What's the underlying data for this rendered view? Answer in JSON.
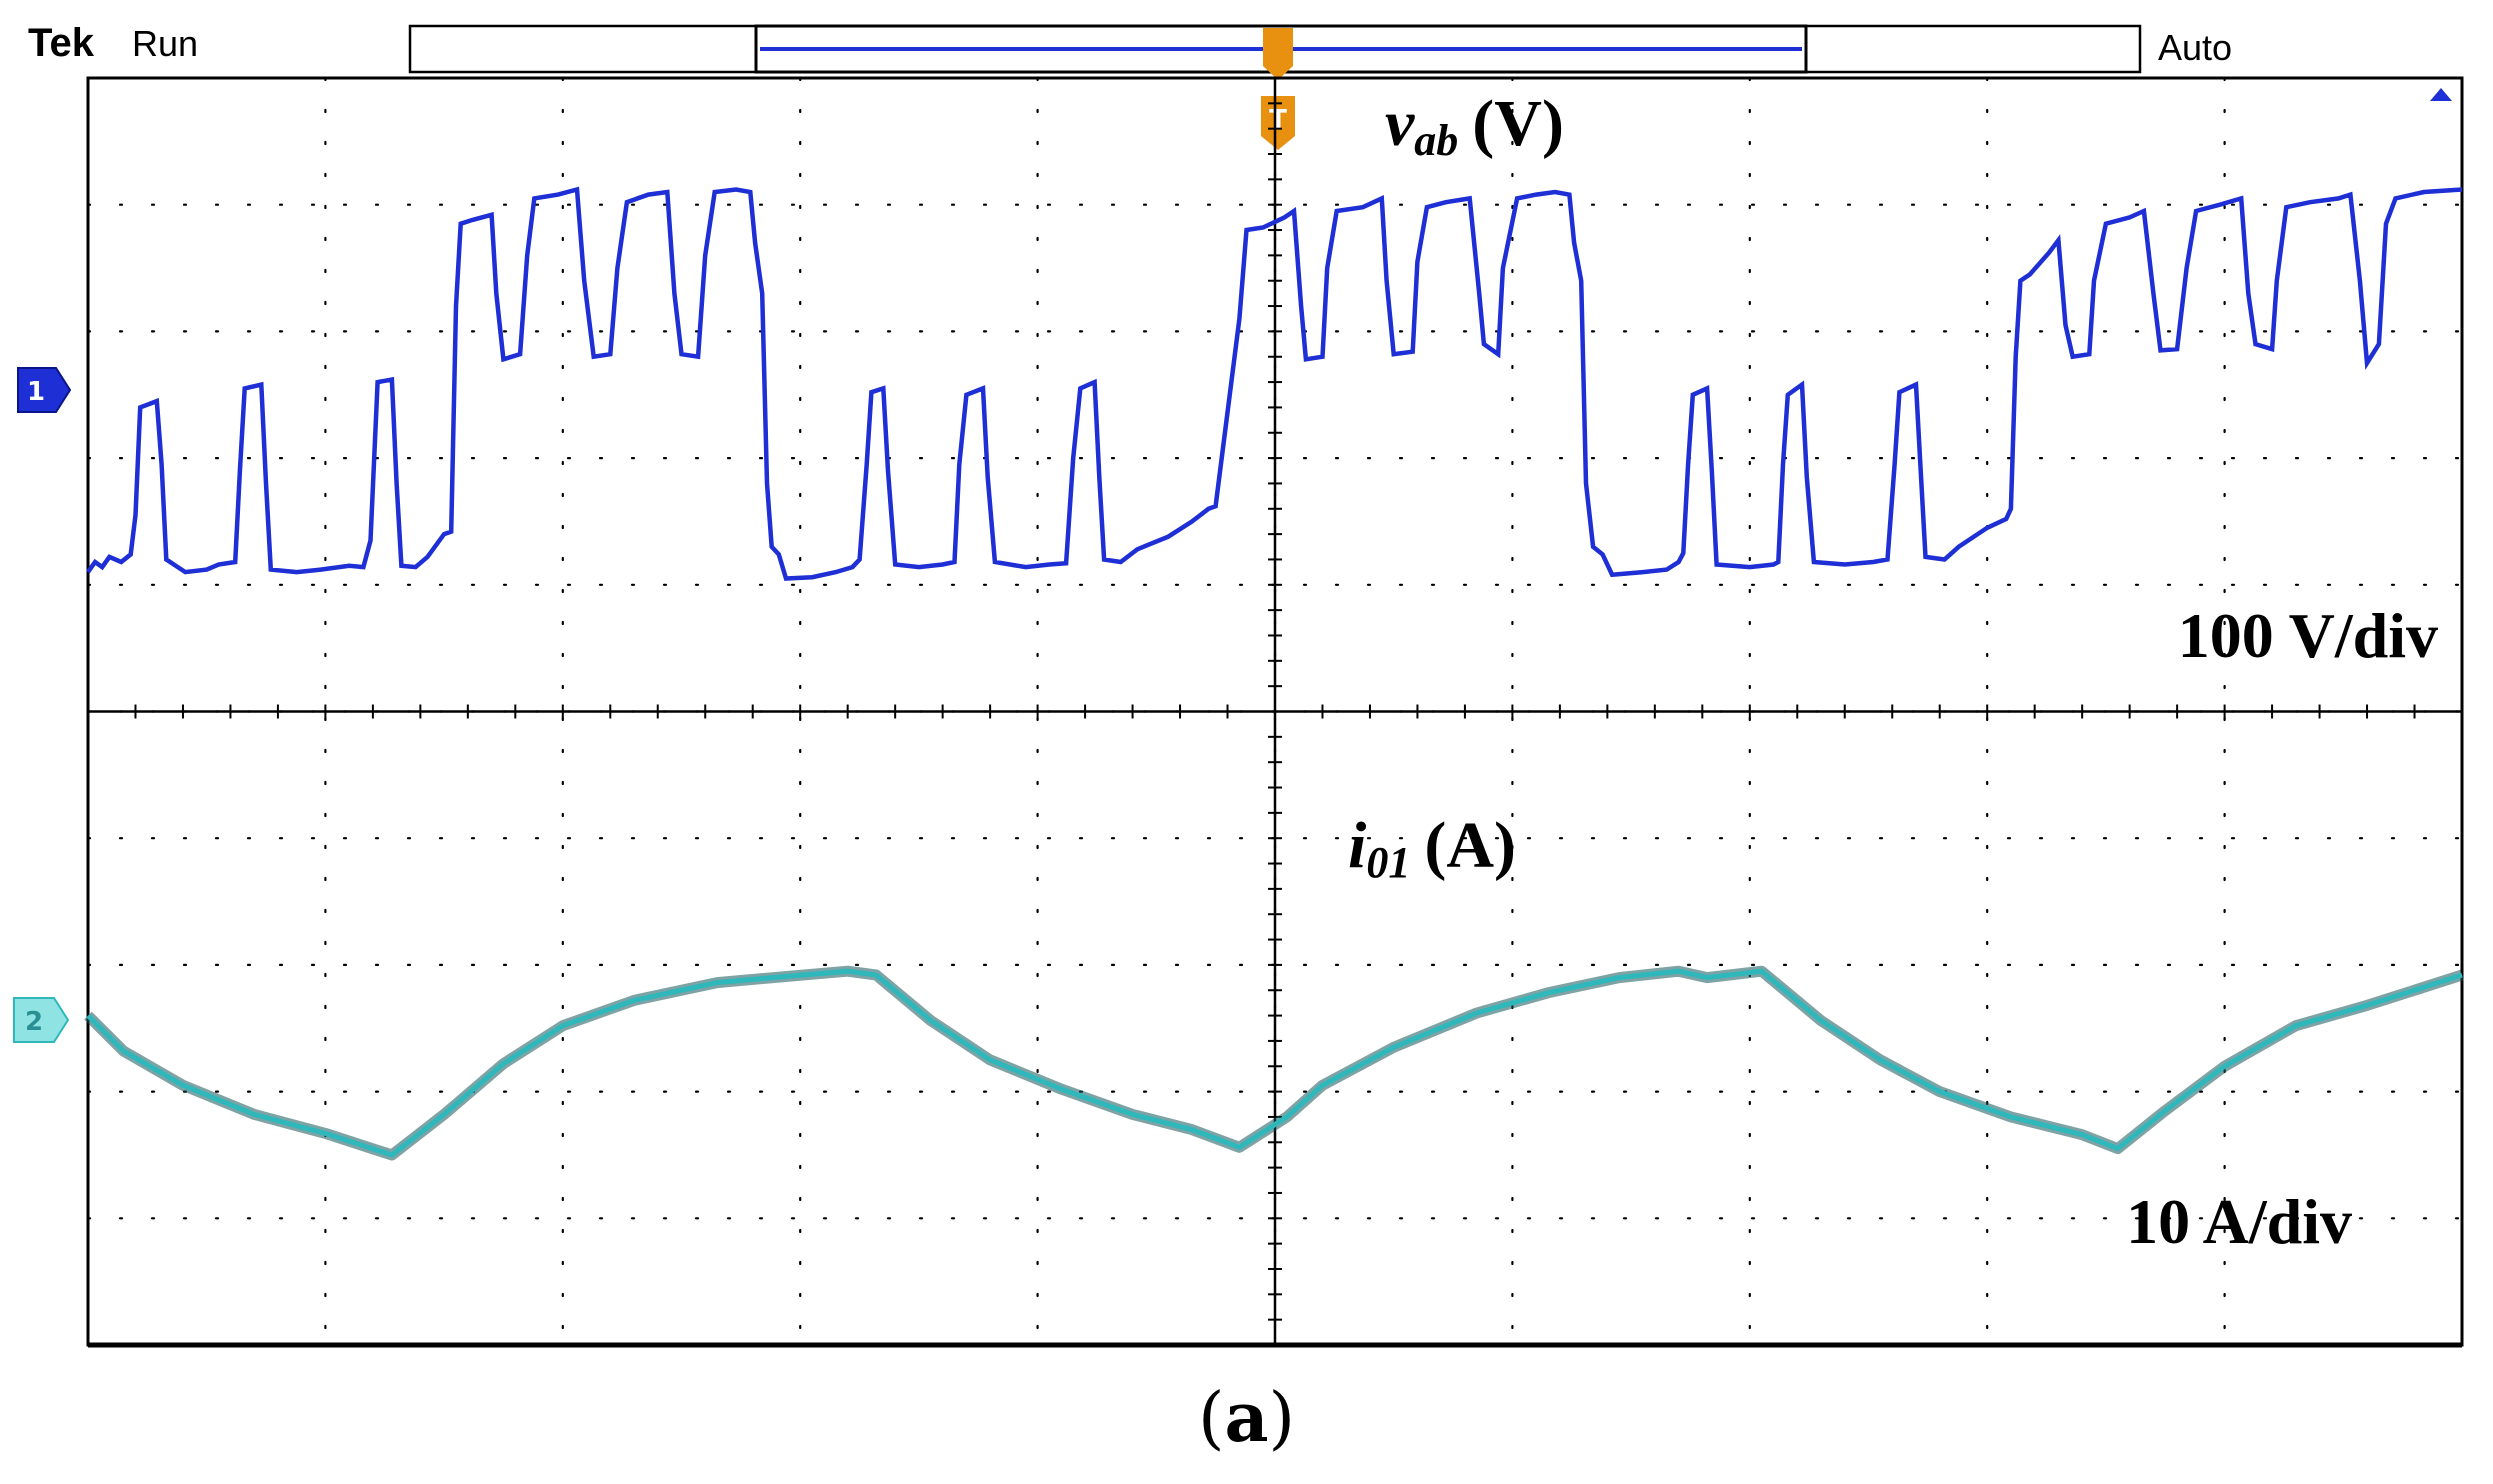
{
  "header": {
    "brand": "Tek",
    "run_state": "Run",
    "trigger_mode": "Auto",
    "trigger_marker": "T"
  },
  "caption": {
    "open": "(",
    "letter": "a",
    "close": ")"
  },
  "colors": {
    "ch1": "#1e2fd6",
    "ch2": "#2fb8bb",
    "ch2_dark": "#16565a",
    "trigger": "#e8900f",
    "grid": "#000000"
  },
  "chart_data": {
    "type": "line",
    "title": "",
    "grid": {
      "horizontal_divisions": 10,
      "vertical_divisions": 10,
      "dotted": true
    },
    "x_unit": "div",
    "channels": [
      {
        "id": 1,
        "marker": "1",
        "signal": "v",
        "subscript": "ab",
        "unit": "(V)",
        "scale": "100 V/div",
        "ylim": [
          0,
          5
        ],
        "points": [
          [
            0.0,
            1.1
          ],
          [
            0.03,
            1.18
          ],
          [
            0.06,
            1.14
          ],
          [
            0.09,
            1.22
          ],
          [
            0.14,
            1.18
          ],
          [
            0.18,
            1.24
          ],
          [
            0.2,
            1.55
          ],
          [
            0.22,
            2.4
          ],
          [
            0.29,
            2.45
          ],
          [
            0.31,
            1.95
          ],
          [
            0.33,
            1.2
          ],
          [
            0.41,
            1.1
          ],
          [
            0.5,
            1.12
          ],
          [
            0.55,
            1.16
          ],
          [
            0.62,
            1.18
          ],
          [
            0.64,
            1.9
          ],
          [
            0.66,
            2.55
          ],
          [
            0.73,
            2.58
          ],
          [
            0.75,
            1.8
          ],
          [
            0.77,
            1.12
          ],
          [
            0.88,
            1.1
          ],
          [
            0.98,
            1.12
          ],
          [
            1.1,
            1.15
          ],
          [
            1.16,
            1.14
          ],
          [
            1.19,
            1.35
          ],
          [
            1.22,
            2.6
          ],
          [
            1.28,
            2.62
          ],
          [
            1.3,
            1.8
          ],
          [
            1.32,
            1.15
          ],
          [
            1.38,
            1.14
          ],
          [
            1.43,
            1.22
          ],
          [
            1.5,
            1.4
          ],
          [
            1.53,
            1.42
          ],
          [
            1.55,
            3.2
          ],
          [
            1.57,
            3.85
          ],
          [
            1.62,
            3.88
          ],
          [
            1.7,
            3.92
          ],
          [
            1.72,
            3.3
          ],
          [
            1.75,
            2.78
          ],
          [
            1.82,
            2.82
          ],
          [
            1.85,
            3.6
          ],
          [
            1.88,
            4.05
          ],
          [
            1.98,
            4.08
          ],
          [
            2.06,
            4.12
          ],
          [
            2.09,
            3.4
          ],
          [
            2.13,
            2.8
          ],
          [
            2.2,
            2.82
          ],
          [
            2.23,
            3.5
          ],
          [
            2.27,
            4.02
          ],
          [
            2.36,
            4.08
          ],
          [
            2.44,
            4.1
          ],
          [
            2.47,
            3.3
          ],
          [
            2.5,
            2.82
          ],
          [
            2.57,
            2.8
          ],
          [
            2.6,
            3.6
          ],
          [
            2.64,
            4.1
          ],
          [
            2.73,
            4.12
          ],
          [
            2.79,
            4.1
          ],
          [
            2.81,
            3.7
          ],
          [
            2.84,
            3.3
          ],
          [
            2.86,
            1.8
          ],
          [
            2.88,
            1.3
          ],
          [
            2.91,
            1.24
          ],
          [
            2.94,
            1.05
          ],
          [
            3.05,
            1.06
          ],
          [
            3.15,
            1.1
          ],
          [
            3.22,
            1.14
          ],
          [
            3.25,
            1.2
          ],
          [
            3.28,
            1.95
          ],
          [
            3.3,
            2.52
          ],
          [
            3.35,
            2.55
          ],
          [
            3.37,
            1.9
          ],
          [
            3.4,
            1.16
          ],
          [
            3.5,
            1.14
          ],
          [
            3.6,
            1.16
          ],
          [
            3.65,
            1.18
          ],
          [
            3.67,
            1.95
          ],
          [
            3.7,
            2.5
          ],
          [
            3.77,
            2.55
          ],
          [
            3.79,
            1.85
          ],
          [
            3.82,
            1.18
          ],
          [
            3.95,
            1.14
          ],
          [
            4.05,
            1.16
          ],
          [
            4.12,
            1.17
          ],
          [
            4.15,
            2.0
          ],
          [
            4.18,
            2.55
          ],
          [
            4.24,
            2.6
          ],
          [
            4.26,
            1.85
          ],
          [
            4.28,
            1.2
          ],
          [
            4.35,
            1.18
          ],
          [
            4.42,
            1.28
          ],
          [
            4.55,
            1.38
          ],
          [
            4.65,
            1.5
          ],
          [
            4.72,
            1.6
          ],
          [
            4.75,
            1.62
          ],
          [
            4.85,
            3.1
          ],
          [
            4.88,
            3.8
          ],
          [
            4.95,
            3.82
          ],
          [
            5.04,
            3.9
          ],
          [
            5.08,
            3.95
          ],
          [
            5.11,
            3.2
          ],
          [
            5.13,
            2.78
          ],
          [
            5.2,
            2.8
          ],
          [
            5.22,
            3.5
          ],
          [
            5.26,
            3.95
          ],
          [
            5.37,
            3.98
          ],
          [
            5.45,
            4.05
          ],
          [
            5.47,
            3.4
          ],
          [
            5.5,
            2.82
          ],
          [
            5.58,
            2.84
          ],
          [
            5.6,
            3.55
          ],
          [
            5.64,
            3.98
          ],
          [
            5.72,
            4.02
          ],
          [
            5.82,
            4.05
          ],
          [
            5.86,
            3.3
          ],
          [
            5.88,
            2.9
          ],
          [
            5.94,
            2.82
          ],
          [
            5.96,
            3.5
          ],
          [
            6.02,
            4.05
          ],
          [
            6.1,
            4.08
          ],
          [
            6.18,
            4.1
          ],
          [
            6.24,
            4.08
          ],
          [
            6.26,
            3.7
          ],
          [
            6.29,
            3.4
          ],
          [
            6.31,
            1.8
          ],
          [
            6.34,
            1.3
          ],
          [
            6.38,
            1.24
          ],
          [
            6.42,
            1.08
          ],
          [
            6.55,
            1.1
          ],
          [
            6.65,
            1.12
          ],
          [
            6.7,
            1.18
          ],
          [
            6.72,
            1.25
          ],
          [
            6.74,
            1.95
          ],
          [
            6.76,
            2.5
          ],
          [
            6.82,
            2.55
          ],
          [
            6.84,
            1.9
          ],
          [
            6.86,
            1.16
          ],
          [
            7.0,
            1.14
          ],
          [
            7.1,
            1.16
          ],
          [
            7.12,
            1.18
          ],
          [
            7.14,
            1.95
          ],
          [
            7.16,
            2.5
          ],
          [
            7.22,
            2.58
          ],
          [
            7.24,
            1.85
          ],
          [
            7.27,
            1.18
          ],
          [
            7.4,
            1.16
          ],
          [
            7.52,
            1.18
          ],
          [
            7.58,
            1.2
          ],
          [
            7.61,
            1.95
          ],
          [
            7.63,
            2.52
          ],
          [
            7.7,
            2.58
          ],
          [
            7.72,
            1.9
          ],
          [
            7.74,
            1.22
          ],
          [
            7.82,
            1.2
          ],
          [
            7.88,
            1.3
          ],
          [
            8.0,
            1.45
          ],
          [
            8.08,
            1.52
          ],
          [
            8.1,
            1.6
          ],
          [
            8.12,
            2.8
          ],
          [
            8.14,
            3.4
          ],
          [
            8.18,
            3.45
          ],
          [
            8.26,
            3.62
          ],
          [
            8.3,
            3.72
          ],
          [
            8.33,
            3.05
          ],
          [
            8.36,
            2.8
          ],
          [
            8.43,
            2.82
          ],
          [
            8.45,
            3.4
          ],
          [
            8.5,
            3.85
          ],
          [
            8.6,
            3.9
          ],
          [
            8.66,
            3.95
          ],
          [
            8.7,
            3.3
          ],
          [
            8.73,
            2.85
          ],
          [
            8.8,
            2.86
          ],
          [
            8.84,
            3.5
          ],
          [
            8.88,
            3.95
          ],
          [
            8.98,
            4.0
          ],
          [
            9.07,
            4.05
          ],
          [
            9.1,
            3.3
          ],
          [
            9.13,
            2.9
          ],
          [
            9.2,
            2.86
          ],
          [
            9.22,
            3.4
          ],
          [
            9.26,
            3.98
          ],
          [
            9.36,
            4.02
          ],
          [
            9.48,
            4.05
          ],
          [
            9.53,
            4.08
          ],
          [
            9.57,
            3.4
          ],
          [
            9.6,
            2.75
          ],
          [
            9.65,
            2.9
          ],
          [
            9.68,
            3.85
          ],
          [
            9.72,
            4.05
          ],
          [
            9.84,
            4.1
          ],
          [
            10.0,
            4.12
          ]
        ]
      },
      {
        "id": 2,
        "marker": "2",
        "signal": "i",
        "subscript": "01",
        "unit": "(A)",
        "scale": "10 A/div",
        "ylim": [
          0,
          5
        ],
        "points": [
          [
            0.0,
            2.6
          ],
          [
            0.15,
            2.32
          ],
          [
            0.4,
            2.05
          ],
          [
            0.7,
            1.82
          ],
          [
            1.0,
            1.67
          ],
          [
            1.28,
            1.5
          ],
          [
            1.5,
            1.82
          ],
          [
            1.75,
            2.22
          ],
          [
            2.0,
            2.52
          ],
          [
            2.3,
            2.72
          ],
          [
            2.65,
            2.86
          ],
          [
            2.95,
            2.91
          ],
          [
            3.2,
            2.95
          ],
          [
            3.32,
            2.92
          ],
          [
            3.55,
            2.56
          ],
          [
            3.8,
            2.25
          ],
          [
            4.1,
            2.02
          ],
          [
            4.4,
            1.82
          ],
          [
            4.65,
            1.7
          ],
          [
            4.85,
            1.56
          ],
          [
            5.05,
            1.8
          ],
          [
            5.2,
            2.05
          ],
          [
            5.5,
            2.35
          ],
          [
            5.85,
            2.62
          ],
          [
            6.15,
            2.78
          ],
          [
            6.45,
            2.9
          ],
          [
            6.7,
            2.95
          ],
          [
            6.82,
            2.9
          ],
          [
            7.05,
            2.95
          ],
          [
            7.3,
            2.56
          ],
          [
            7.55,
            2.25
          ],
          [
            7.8,
            2.0
          ],
          [
            8.1,
            1.8
          ],
          [
            8.4,
            1.66
          ],
          [
            8.55,
            1.55
          ],
          [
            8.75,
            1.85
          ],
          [
            9.0,
            2.2
          ],
          [
            9.3,
            2.52
          ],
          [
            9.6,
            2.68
          ],
          [
            9.8,
            2.8
          ],
          [
            10.0,
            2.92
          ]
        ]
      }
    ]
  }
}
